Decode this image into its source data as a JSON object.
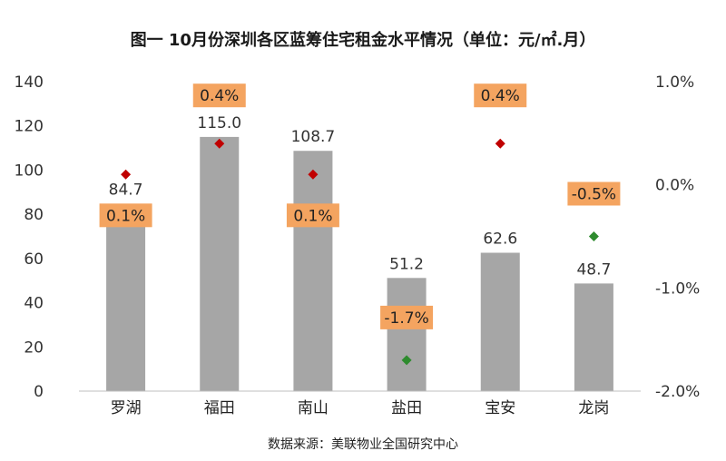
{
  "chart_data": {
    "type": "bar",
    "title": "图一 10月份深圳各区蓝筹住宅租金水平情况（单位：元/㎡.月）",
    "categories": [
      "罗湖",
      "福田",
      "南山",
      "盐田",
      "宝安",
      "龙岗"
    ],
    "series": [
      {
        "values": [
          84.7,
          115.0,
          108.7,
          51.2,
          62.6,
          48.7
        ],
        "labels": [
          "84.7",
          "115.0",
          "108.7",
          "51.2",
          "62.6",
          "48.7"
        ],
        "axis": "left",
        "color": "#a6a6a6"
      },
      {
        "values": [
          0.1,
          0.4,
          0.1,
          -1.7,
          0.4,
          -0.5
        ],
        "labels": [
          "0.1%",
          "0.4%",
          "0.1%",
          "-1.7%",
          "0.4%",
          "-0.5%"
        ],
        "axis": "right",
        "marker": "diamond",
        "colors": [
          "#c00000",
          "#c00000",
          "#c00000",
          "#2e8b2e",
          "#c00000",
          "#2e8b2e"
        ],
        "label_bg": "#f4a460"
      }
    ],
    "y_left": {
      "range": [
        0,
        140
      ],
      "ticks": [
        "0",
        "20",
        "40",
        "60",
        "80",
        "100",
        "120",
        "140"
      ]
    },
    "y_right": {
      "range": [
        -2.0,
        1.0
      ],
      "ticks": [
        "-2.0%",
        "-1.0%",
        "0.0%",
        "1.0%"
      ]
    },
    "grid": false,
    "legend": "none",
    "source": "数据来源：美联物业全国研究中心"
  }
}
